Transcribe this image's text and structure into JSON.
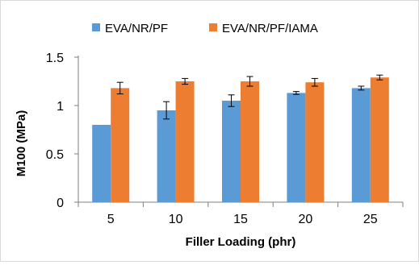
{
  "chart_data": {
    "type": "bar",
    "title": "",
    "xlabel": "Filler Loading (phr)",
    "ylabel": "M100 (MPa)",
    "categories": [
      "5",
      "10",
      "15",
      "20",
      "25"
    ],
    "ylim": [
      0,
      1.5
    ],
    "yticks": [
      "0",
      "0.5",
      "1",
      "1.5"
    ],
    "grid": false,
    "legend_position": "top",
    "series": [
      {
        "name": "EVA/NR/PF",
        "color": "#5b9bd5",
        "values": [
          0.8,
          0.95,
          1.05,
          1.13,
          1.18
        ],
        "errors": [
          0.0,
          0.09,
          0.06,
          0.015,
          0.02
        ]
      },
      {
        "name": "EVA/NR/PF/IAMA",
        "color": "#ed7d31",
        "values": [
          1.18,
          1.25,
          1.25,
          1.24,
          1.29
        ],
        "errors": [
          0.06,
          0.03,
          0.05,
          0.04,
          0.025
        ]
      }
    ]
  }
}
